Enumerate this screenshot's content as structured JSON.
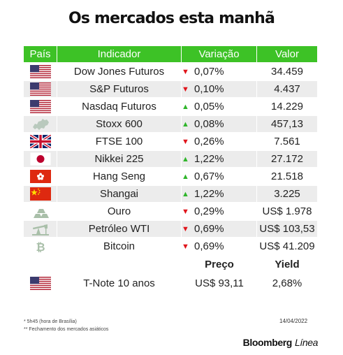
{
  "title": "Os mercados esta manhã",
  "header": {
    "country": "País",
    "indicator": "Indicador",
    "change": "Variação",
    "value": "Valor"
  },
  "rows": [
    {
      "flag": "usa-flag",
      "indicator": "Dow Jones Futuros",
      "direction": "down",
      "change": "0,07%",
      "value": "34.459"
    },
    {
      "flag": "usa-flag",
      "indicator": "S&P Futuros",
      "direction": "down",
      "change": "0,10%",
      "value": "4.437"
    },
    {
      "flag": "usa-flag",
      "indicator": "Nasdaq Futuros",
      "direction": "up",
      "change": "0,05%",
      "value": "14.229"
    },
    {
      "flag": "europe-map-icon",
      "indicator": "Stoxx 600",
      "direction": "up",
      "change": "0,08%",
      "value": "457,13"
    },
    {
      "flag": "uk-flag",
      "indicator": "FTSE 100",
      "direction": "down",
      "change": "0,26%",
      "value": "7.561"
    },
    {
      "flag": "japan-flag",
      "indicator": "Nikkei 225",
      "direction": "up",
      "change": "1,22%",
      "value": "27.172"
    },
    {
      "flag": "hong-kong-flag",
      "indicator": "Hang Seng",
      "direction": "up",
      "change": "0,67%",
      "value": "21.518"
    },
    {
      "flag": "china-flag",
      "indicator": "Shangai",
      "direction": "up",
      "change": "1,22%",
      "value": "3.225"
    },
    {
      "flag": "gold-bars-icon",
      "indicator": "Ouro",
      "direction": "down",
      "change": "0,29%",
      "value": "US$ 1.978"
    },
    {
      "flag": "oil-pump-icon",
      "indicator": "Petróleo WTI",
      "direction": "down",
      "change": "0,69%",
      "value": "US$ 103,53"
    },
    {
      "flag": "bitcoin-icon",
      "indicator": "Bitcoin",
      "direction": "down",
      "change": "0,69%",
      "value": "US$ 41.209"
    }
  ],
  "bond_header": {
    "price": "Preço",
    "yield": "Yield"
  },
  "bond": {
    "flag": "usa-flag",
    "indicator": "T-Note 10 anos",
    "price": "US$ 93,11",
    "yield": "2,68%"
  },
  "footnotes": {
    "time": "* 5h45 (hora de Brasília)",
    "asian": "** Fechamento dos mercados asiáticos"
  },
  "date": "14/04/2022",
  "brand": {
    "name": "Bloomberg",
    "suffix": "Línea"
  },
  "colors": {
    "header_green": "#3dc226",
    "down_red": "#e0141b",
    "up_green": "#2fb52a",
    "row_alt": "#ececec"
  },
  "arrows": {
    "down": "▼",
    "up": "▲"
  }
}
